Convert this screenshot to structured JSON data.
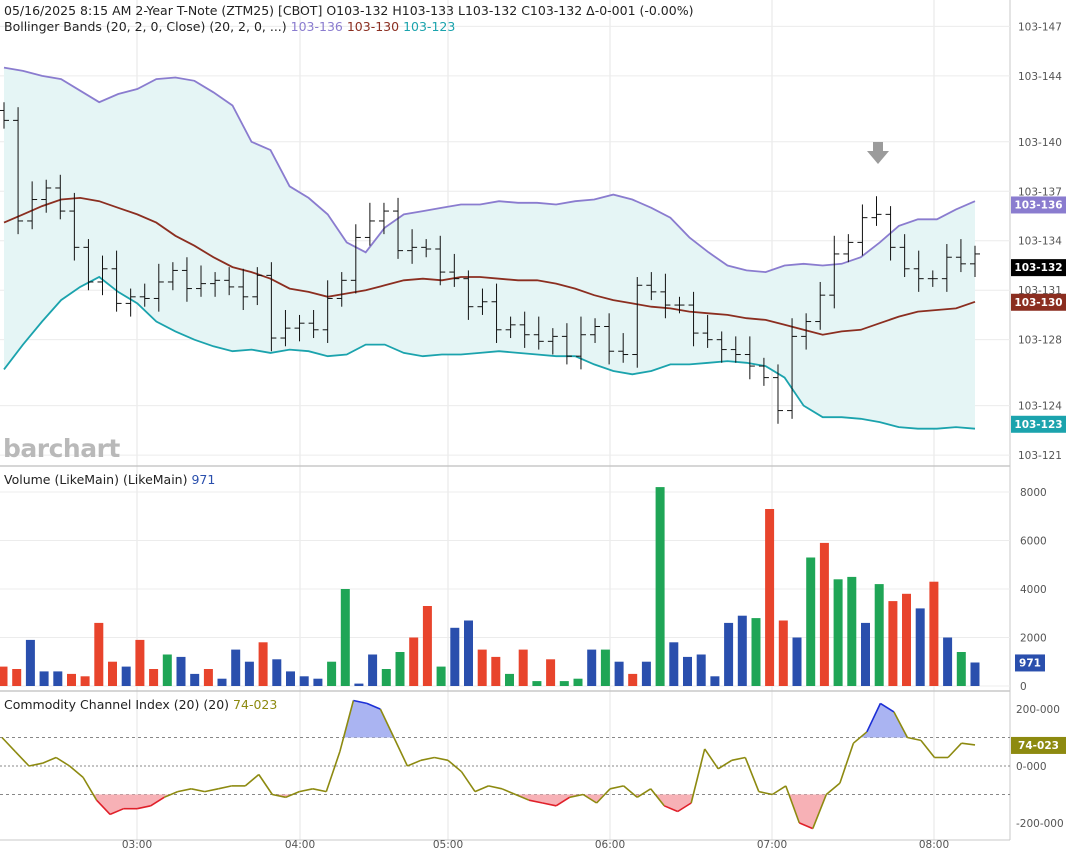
{
  "header": {
    "date": "05/16/2025",
    "time": "8:15 AM",
    "instrument": "2-Year T-Note (ZTM25) [CBOT]",
    "open": "O103-132",
    "high": "H103-133",
    "low": "L103-132",
    "close": "C103-132",
    "change": "Δ-0-001 (-0.00%)"
  },
  "bollinger": {
    "label": "Bollinger Bands (20, 2, 0, Close)",
    "params": "(20, 2, 0, ...)",
    "upper_value": "103-136",
    "middle_value": "103-130",
    "lower_value": "103-123"
  },
  "volume": {
    "label": "Volume (LikeMain)",
    "params": "(LikeMain)",
    "value": "971"
  },
  "cci": {
    "label": "Commodity Channel Index (20)",
    "params": "(20)",
    "value": "74-023"
  },
  "watermark": "barchart",
  "colors": {
    "up": "#1fa556",
    "down": "#e8442c",
    "neutral": "#2a4fad",
    "bb_upper": "#8a7ccf",
    "bb_middle": "#8b2e20",
    "bb_lower": "#1ba3ad",
    "bb_fill": "#e5f5f5",
    "cci": "#8d8a10",
    "cci_pos_fill": "#aab4f2",
    "cci_neg_fill": "#f7b1b6",
    "last_price_tag": "#000000",
    "arrow": "#9b9b9b"
  },
  "chart_data": [
    {
      "type": "ohlc",
      "name": "price",
      "time_axis": [
        "03:00",
        "04:00",
        "05:00",
        "06:00",
        "07:00",
        "08:00"
      ],
      "y_ticks": [
        "103-147",
        "103-144",
        "103-140",
        "103-137",
        "103-134",
        "103-131",
        "103-128",
        "103-124",
        "103-121"
      ],
      "y_range": [
        120.4,
        148.6
      ],
      "y_tick_values": [
        147,
        144,
        140,
        137,
        134,
        131,
        128,
        124,
        121
      ],
      "bars_close_approx": [
        141.3,
        135.2,
        136.5,
        137.2,
        135.8,
        133.6,
        131.5,
        132.3,
        130.2,
        130.6,
        130.5,
        131.5,
        132.2,
        131.1,
        131.4,
        131.6,
        131.2,
        130.6,
        131.9,
        128.1,
        128.7,
        129.0,
        128.6,
        130.5,
        131.6,
        134.2,
        135.2,
        135.8,
        133.4,
        133.6,
        133.5,
        132.1,
        131.7,
        130.0,
        130.3,
        128.6,
        128.9,
        128.3,
        127.9,
        128.2,
        127.0,
        128.3,
        128.8,
        127.3,
        127.1,
        131.3,
        130.9,
        130.1,
        130.1,
        128.4,
        128.0,
        127.4,
        127.1,
        126.4,
        125.7,
        123.7,
        128.2,
        129.1,
        130.7,
        133.2,
        133.9,
        135.4,
        135.6,
        133.6,
        132.3,
        131.7,
        131.7,
        133.0,
        132.6,
        133.2
      ],
      "upper_band": [
        144.5,
        144.3,
        144.0,
        143.8,
        143.1,
        142.4,
        142.9,
        143.2,
        143.8,
        143.9,
        143.7,
        143.0,
        142.2,
        140.0,
        139.5,
        137.3,
        136.6,
        135.6,
        133.9,
        133.3,
        134.8,
        135.6,
        135.8,
        136.0,
        136.2,
        136.2,
        136.4,
        136.3,
        136.3,
        136.2,
        136.4,
        136.5,
        136.8,
        136.5,
        136.0,
        135.4,
        134.2,
        133.3,
        132.5,
        132.2,
        132.1,
        132.5,
        132.6,
        132.5,
        132.6,
        133.0,
        133.9,
        134.9,
        135.3,
        135.3,
        135.9,
        136.4
      ],
      "middle_band": [
        135.1,
        135.6,
        136.1,
        136.5,
        136.6,
        136.4,
        136.0,
        135.6,
        135.1,
        134.3,
        133.7,
        133.0,
        132.4,
        132.1,
        131.7,
        131.1,
        130.9,
        130.6,
        130.8,
        131.0,
        131.3,
        131.6,
        131.7,
        131.6,
        131.8,
        131.8,
        131.7,
        131.6,
        131.6,
        131.4,
        131.1,
        130.7,
        130.4,
        130.2,
        130.0,
        129.9,
        129.7,
        129.6,
        129.5,
        129.3,
        129.2,
        128.9,
        128.6,
        128.3,
        128.5,
        128.6,
        129.0,
        129.4,
        129.7,
        129.8,
        129.9,
        130.3
      ],
      "lower_band": [
        126.2,
        127.7,
        129.1,
        130.4,
        131.2,
        131.8,
        130.9,
        130.2,
        129.1,
        128.5,
        128.0,
        127.6,
        127.3,
        127.4,
        127.2,
        127.4,
        127.3,
        127.0,
        127.1,
        127.7,
        127.7,
        127.2,
        127.0,
        127.1,
        127.1,
        127.2,
        127.3,
        127.2,
        127.1,
        127.0,
        127.0,
        126.5,
        126.1,
        125.9,
        126.1,
        126.5,
        126.5,
        126.6,
        126.7,
        126.6,
        126.4,
        125.7,
        124.0,
        123.3,
        123.3,
        123.2,
        123.0,
        122.7,
        122.6,
        122.6,
        122.7,
        122.6
      ]
    },
    {
      "type": "bar",
      "name": "volume",
      "y_ticks": [
        "8000",
        "6000",
        "4000",
        "2000",
        "0"
      ],
      "y_tick_values": [
        8000,
        6000,
        4000,
        2000,
        0
      ],
      "y_range": [
        0,
        8700
      ],
      "values": [
        800,
        700,
        1900,
        600,
        600,
        500,
        400,
        2600,
        1000,
        800,
        1900,
        700,
        1300,
        1200,
        500,
        700,
        300,
        1500,
        1000,
        1800,
        1100,
        600,
        400,
        300,
        1000,
        4000,
        100,
        1300,
        700,
        1400,
        2000,
        3300,
        800,
        2400,
        2700,
        1500,
        1200,
        500,
        1500,
        200,
        1100,
        200,
        300,
        1500,
        1500,
        1000,
        500,
        1000,
        8200,
        1800,
        1200,
        1300,
        400,
        2600,
        2900,
        2800,
        7300,
        2700,
        2000,
        5300,
        5900,
        4400,
        4500,
        2600,
        4200,
        3500,
        3800,
        3200,
        4300,
        2000,
        1400,
        971
      ],
      "direction": [
        "down",
        "down",
        "neutral",
        "neutral",
        "neutral",
        "down",
        "down",
        "down",
        "down",
        "neutral",
        "down",
        "down",
        "up",
        "neutral",
        "neutral",
        "down",
        "neutral",
        "neutral",
        "neutral",
        "down",
        "neutral",
        "neutral",
        "neutral",
        "neutral",
        "up",
        "up",
        "neutral",
        "neutral",
        "up",
        "up",
        "down",
        "down",
        "up",
        "neutral",
        "neutral",
        "down",
        "down",
        "up",
        "down",
        "up",
        "down",
        "up",
        "up",
        "neutral",
        "up",
        "neutral",
        "down",
        "neutral",
        "up",
        "neutral",
        "neutral",
        "neutral",
        "neutral",
        "neutral",
        "neutral",
        "up",
        "down",
        "down",
        "neutral",
        "up",
        "down",
        "up",
        "up",
        "neutral",
        "up",
        "down",
        "down",
        "neutral",
        "down",
        "neutral",
        "up",
        "neutral"
      ]
    },
    {
      "type": "line",
      "name": "cci",
      "y_ticks": [
        "200-000",
        "0-000",
        "-200-000"
      ],
      "y_tick_values": [
        200,
        0,
        -200
      ],
      "y_range": [
        -260,
        260
      ],
      "levels": [
        100,
        -100
      ],
      "values": [
        100,
        50,
        0,
        10,
        30,
        0,
        -40,
        -120,
        -170,
        -150,
        -150,
        -140,
        -110,
        -90,
        -80,
        -90,
        -80,
        -70,
        -70,
        -30,
        -100,
        -110,
        -90,
        -80,
        -90,
        50,
        230,
        220,
        200,
        100,
        0,
        20,
        30,
        20,
        -20,
        -90,
        -70,
        -80,
        -100,
        -120,
        -130,
        -140,
        -110,
        -100,
        -130,
        -80,
        -70,
        -110,
        -80,
        -140,
        -160,
        -130,
        60,
        -10,
        20,
        30,
        -90,
        -100,
        -70,
        -200,
        -220,
        -100,
        -60,
        80,
        120,
        220,
        190,
        100,
        90,
        30,
        30,
        80,
        74
      ]
    }
  ]
}
